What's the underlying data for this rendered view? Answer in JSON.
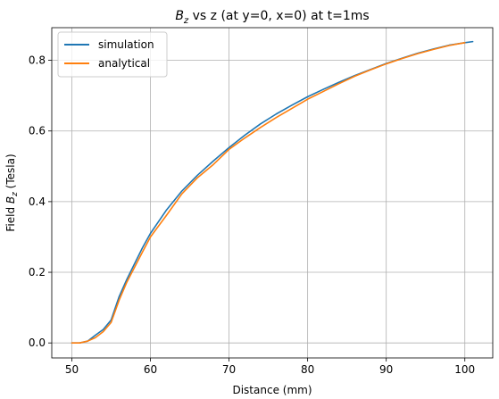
{
  "chart_data": {
    "type": "line",
    "title": {
      "prefix": "B",
      "subscript": "z",
      "suffix": " vs z (at y=0, x=0) at t=1ms"
    },
    "xlabel": "Distance (mm)",
    "ylabel": {
      "prefix": "Field ",
      "symbol": "B",
      "subscript": "z",
      "suffix": " (Tesla)"
    },
    "xlim": [
      47.45,
      103.55
    ],
    "ylim": [
      -0.0425,
      0.8925
    ],
    "xticks": [
      50,
      60,
      70,
      80,
      90,
      100
    ],
    "xtick_labels": [
      "50",
      "60",
      "70",
      "80",
      "90",
      "100"
    ],
    "yticks": [
      0.0,
      0.2,
      0.4,
      0.6,
      0.8
    ],
    "ytick_labels": [
      "0.0",
      "0.2",
      "0.4",
      "0.6",
      "0.8"
    ],
    "grid": true,
    "legend_position": "top-left",
    "series": [
      {
        "name": "simulation",
        "color": "#1f77b4",
        "x": [
          50,
          51,
          52,
          53,
          54,
          55,
          56,
          57,
          58,
          59,
          60,
          62,
          64,
          66,
          68,
          70,
          72,
          74,
          76,
          78,
          80,
          82,
          84,
          86,
          88,
          90,
          92,
          94,
          96,
          98,
          100,
          101
        ],
        "y": [
          0.0,
          0.0,
          0.005,
          0.022,
          0.038,
          0.065,
          0.13,
          0.18,
          0.225,
          0.27,
          0.31,
          0.375,
          0.43,
          0.475,
          0.515,
          0.553,
          0.588,
          0.62,
          0.648,
          0.673,
          0.697,
          0.718,
          0.738,
          0.757,
          0.774,
          0.791,
          0.806,
          0.82,
          0.832,
          0.843,
          0.85,
          0.853
        ]
      },
      {
        "name": "analytical",
        "color": "#ff7f0e",
        "x": [
          50,
          51,
          52,
          53,
          54,
          55,
          56,
          57,
          58,
          59,
          60,
          62,
          64,
          66,
          68,
          70,
          72,
          74,
          76,
          78,
          80,
          82,
          84,
          86,
          88,
          90,
          92,
          94,
          96,
          98,
          100
        ],
        "y": [
          0.0,
          0.0,
          0.005,
          0.015,
          0.032,
          0.058,
          0.12,
          0.172,
          0.215,
          0.258,
          0.3,
          0.36,
          0.422,
          0.468,
          0.505,
          0.548,
          0.58,
          0.61,
          0.638,
          0.664,
          0.69,
          0.712,
          0.734,
          0.755,
          0.773,
          0.79,
          0.805,
          0.819,
          0.831,
          0.842,
          0.85
        ]
      }
    ]
  }
}
